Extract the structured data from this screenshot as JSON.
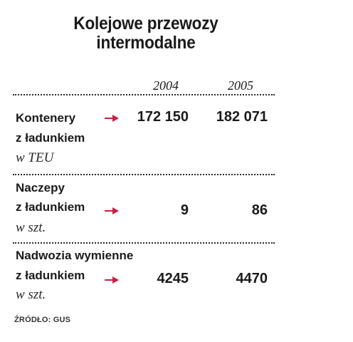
{
  "title": {
    "line1": "Kolejowe przewozy",
    "line2": "intermodalne"
  },
  "years": [
    "2004",
    "2005"
  ],
  "rows": [
    {
      "label_line1": "Kontenery",
      "label_line2": "z ładunkiem",
      "unit": "w TEU",
      "values": [
        "172 150",
        "182 071"
      ]
    },
    {
      "label_line1": "Naczepy",
      "label_line2": "z ładunkiem",
      "unit": "w szt.",
      "values": [
        "9",
        "86"
      ]
    },
    {
      "label_line1": "Nadwozia wymienne",
      "label_line2": "z ładunkiem",
      "unit": "w szt.",
      "values": [
        "4245",
        "4470"
      ]
    }
  ],
  "source": "ŹRÓDŁO: GUS",
  "colors": {
    "arrow": "#c8203f",
    "text": "#1a1a1a"
  },
  "chart_data": {
    "type": "table",
    "title": "Kolejowe przewozy intermodalne",
    "columns": [
      "2004",
      "2005"
    ],
    "rows": [
      {
        "label": "Kontenery z ładunkiem",
        "unit": "w TEU",
        "values": [
          172150,
          182071
        ]
      },
      {
        "label": "Naczepy z ładunkiem",
        "unit": "w szt.",
        "values": [
          9,
          86
        ]
      },
      {
        "label": "Nadwozia wymienne z ładunkiem",
        "unit": "w szt.",
        "values": [
          4245,
          4470
        ]
      }
    ],
    "source": "ŹRÓDŁO: GUS"
  }
}
